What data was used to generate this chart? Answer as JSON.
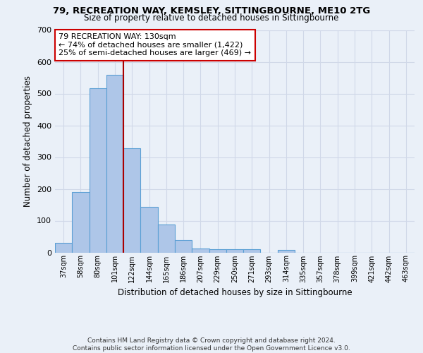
{
  "title_line1": "79, RECREATION WAY, KEMSLEY, SITTINGBOURNE, ME10 2TG",
  "title_line2": "Size of property relative to detached houses in Sittingbourne",
  "xlabel": "Distribution of detached houses by size in Sittingbourne",
  "ylabel": "Number of detached properties",
  "footer1": "Contains HM Land Registry data © Crown copyright and database right 2024.",
  "footer2": "Contains public sector information licensed under the Open Government Licence v3.0.",
  "categories": [
    "37sqm",
    "58sqm",
    "80sqm",
    "101sqm",
    "122sqm",
    "144sqm",
    "165sqm",
    "186sqm",
    "207sqm",
    "229sqm",
    "250sqm",
    "271sqm",
    "293sqm",
    "314sqm",
    "335sqm",
    "357sqm",
    "378sqm",
    "399sqm",
    "421sqm",
    "442sqm",
    "463sqm"
  ],
  "values": [
    30,
    190,
    517,
    560,
    328,
    143,
    87,
    40,
    13,
    10,
    9,
    10,
    0,
    7,
    0,
    0,
    0,
    0,
    0,
    0,
    0
  ],
  "bar_color": "#aec6e8",
  "bar_edge_color": "#5a9fd4",
  "grid_color": "#d0d8e8",
  "background_color": "#eaf0f8",
  "vline_color": "#aa0000",
  "vline_position": 4.5,
  "annotation_text": "79 RECREATION WAY: 130sqm\n← 74% of detached houses are smaller (1,422)\n25% of semi-detached houses are larger (469) →",
  "annotation_box_color": "#ffffff",
  "annotation_box_edge": "#cc0000",
  "ylim": [
    0,
    700
  ],
  "yticks": [
    0,
    100,
    200,
    300,
    400,
    500,
    600,
    700
  ]
}
